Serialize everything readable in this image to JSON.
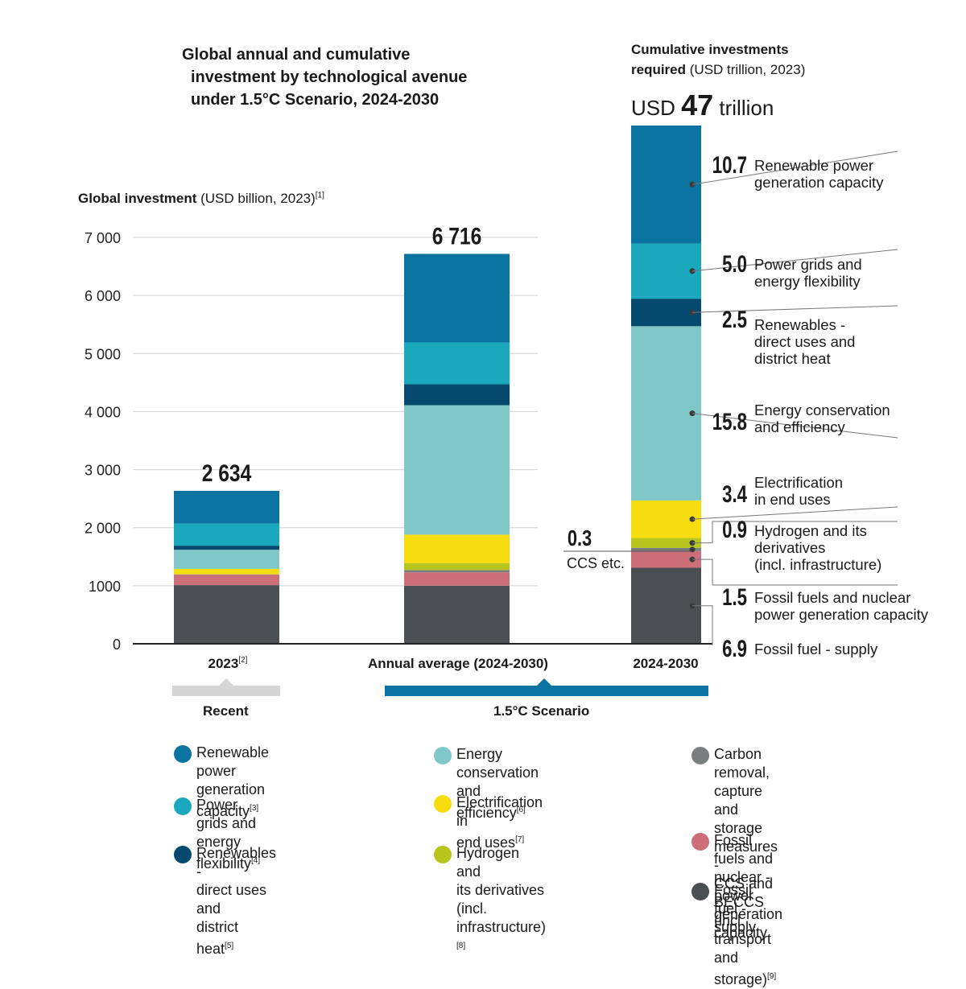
{
  "title": {
    "line1": "Global annual and cumulative",
    "line2": "investment by technological avenue",
    "line3": "under 1.5°C Scenario, 2024-2030"
  },
  "y_axis_label": {
    "bold": "Global investment",
    "rest": " (USD billion, 2023)",
    "note": "[1]"
  },
  "cumulative_header": {
    "line1": "Cumulative investments",
    "line2_bold": "required",
    "line2_rest": " (USD trillion, 2023)",
    "total_prefix": "USD ",
    "total_value": "47",
    "total_suffix": " trillion"
  },
  "groups": {
    "recent": "Recent",
    "scenario": "1.5°C Scenario"
  },
  "colors": {
    "renewable_power": "#0b73a0",
    "grids": "#1aa8bd",
    "renewables_direct": "#06496f",
    "efficiency": "#80c8c8",
    "electrification": "#f7dd0f",
    "hydrogen": "#b7c51c",
    "ccs": "#7a7e7f",
    "fossil_nuclear": "#cc6f78",
    "fossil_supply": "#4a4f52",
    "scenario_bar": "#0b73a0",
    "recent_bar": "#d6d6d6"
  },
  "chart_data": [
    {
      "type": "bar",
      "stacked": true,
      "ylabel": "Global investment (USD billion, 2023)",
      "ylim": [
        0,
        7000
      ],
      "yticks": [
        "0",
        "1000",
        "2 000",
        "3 000",
        "4 000",
        "5 000",
        "6 000",
        "7 000"
      ],
      "ytick_values": [
        0,
        1000,
        2000,
        3000,
        4000,
        5000,
        6000,
        7000
      ],
      "grid": true,
      "categories": [
        "2023",
        "Annual average (2024-2030)"
      ],
      "category_notes": [
        "[2]",
        ""
      ],
      "totals": [
        "2 634",
        "6 716"
      ],
      "series": [
        {
          "name": "Fossil fuel - supply",
          "key": "fossil_supply",
          "values": [
            1010,
            1000
          ]
        },
        {
          "name": "Fossil fuels and nuclear - power generation capacity",
          "key": "fossil_nuclear",
          "values": [
            180,
            230
          ]
        },
        {
          "name": "Carbon removal, capture and storage measures - CCS and BECCS (incl. transport and storage)",
          "key": "ccs",
          "values": [
            5,
            40
          ]
        },
        {
          "name": "Hydrogen and its derivatives (incl. infrastructure)",
          "key": "hydrogen",
          "values": [
            5,
            120
          ]
        },
        {
          "name": "Electrification in end uses",
          "key": "electrification",
          "values": [
            90,
            490
          ]
        },
        {
          "name": "Energy conservation and efficiency",
          "key": "efficiency",
          "values": [
            330,
            2230
          ]
        },
        {
          "name": "Renewables - direct uses and district heat",
          "key": "renewables_direct",
          "values": [
            70,
            360
          ]
        },
        {
          "name": "Power grids and energy flexibility",
          "key": "grids",
          "values": [
            380,
            720
          ]
        },
        {
          "name": "Renewable power generation capacity",
          "key": "renewable_power",
          "values": [
            564,
            1526
          ]
        }
      ]
    },
    {
      "type": "bar",
      "stacked": true,
      "unit": "USD trillion, 2023",
      "categories": [
        "2024-2030"
      ],
      "total": 47,
      "series": [
        {
          "name": "Fossil fuel - supply",
          "key": "fossil_supply",
          "value": 6.9,
          "label": "6.9",
          "text": "Fossil fuel - supply"
        },
        {
          "name": "Fossil fuels and nuclear power generation capacity",
          "key": "fossil_nuclear",
          "value": 1.5,
          "label": "1.5",
          "text": "Fossil fuels and nuclear\npower generation capacity"
        },
        {
          "name": "CCS etc.",
          "key": "ccs",
          "value": 0.3,
          "label": "0.3",
          "text": "CCS etc."
        },
        {
          "name": "Hydrogen and its derivatives (incl. infrastructure)",
          "key": "hydrogen",
          "value": 0.9,
          "label": "0.9",
          "text": "Hydrogen and its\nderivatives\n(incl. infrastructure)"
        },
        {
          "name": "Electrification in end uses",
          "key": "electrification",
          "value": 3.4,
          "label": "3.4",
          "text": "Electrification\nin end uses"
        },
        {
          "name": "Energy conservation and efficiency",
          "key": "efficiency",
          "value": 15.8,
          "label": "15.8",
          "text": "Energy conservation\nand efficiency"
        },
        {
          "name": "Renewables - direct uses and district heat",
          "key": "renewables_direct",
          "value": 2.5,
          "label": "2.5",
          "text": "Renewables -\ndirect uses and\ndistrict heat"
        },
        {
          "name": "Power grids and energy flexibility",
          "key": "grids",
          "value": 5.0,
          "label": "5.0",
          "text": "Power grids and\nenergy flexibility"
        },
        {
          "name": "Renewable power generation capacity",
          "key": "renewable_power",
          "value": 10.7,
          "label": "10.7",
          "text": "Renewable power\ngeneration capacity"
        }
      ]
    }
  ],
  "legend": [
    {
      "key": "renewable_power",
      "text": "Renewable power\ngeneration capacity",
      "note": "[3]"
    },
    {
      "key": "grids",
      "text": "Power grids and\nenergy flexibility",
      "note": "[4]"
    },
    {
      "key": "renewables_direct",
      "text": "Renewables -\ndirect uses and\ndistrict heat",
      "note": "[5]"
    },
    {
      "key": "efficiency",
      "text": "Energy conservation\nand efficiency",
      "note": "[6]"
    },
    {
      "key": "electrification",
      "text": "Electrification in\nend uses",
      "note": "[7]"
    },
    {
      "key": "hydrogen",
      "text": "Hydrogen and\nits derivatives\n(incl. infrastructure)",
      "note": "[8]"
    },
    {
      "key": "ccs",
      "text": "Carbon removal, capture\nand storage measures -\nCCS and BECCS\n(incl. transport and storage)",
      "note": "[9]"
    },
    {
      "key": "fossil_nuclear",
      "text": "Fossil fuels and nuclear -\npower generation capacity",
      "note": ""
    },
    {
      "key": "fossil_supply",
      "text": "Fossil fuel - supply",
      "note": ""
    }
  ]
}
